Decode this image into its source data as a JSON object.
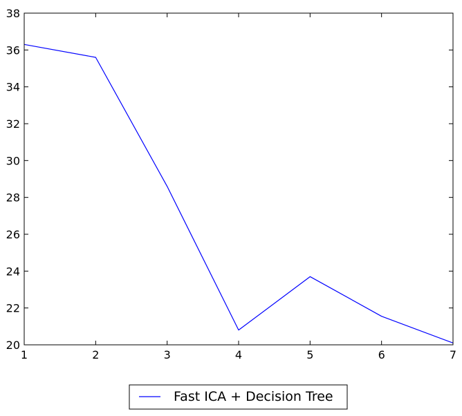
{
  "chart_data": {
    "type": "line",
    "title": "",
    "xlabel": "",
    "ylabel": "",
    "x": [
      1,
      2,
      3,
      4,
      5,
      6,
      7
    ],
    "series": [
      {
        "name": "Fast ICA + Decision Tree",
        "color": "#0000ff",
        "values": [
          36.3,
          35.6,
          28.6,
          20.8,
          23.7,
          21.55,
          20.1
        ]
      }
    ],
    "xlim": [
      1,
      7
    ],
    "ylim": [
      20,
      38
    ],
    "xticks": [
      1,
      2,
      3,
      4,
      5,
      6,
      7
    ],
    "yticks": [
      20,
      22,
      24,
      26,
      28,
      30,
      32,
      34,
      36,
      38
    ],
    "grid": false,
    "legend_position": "bottom-center-outside"
  }
}
